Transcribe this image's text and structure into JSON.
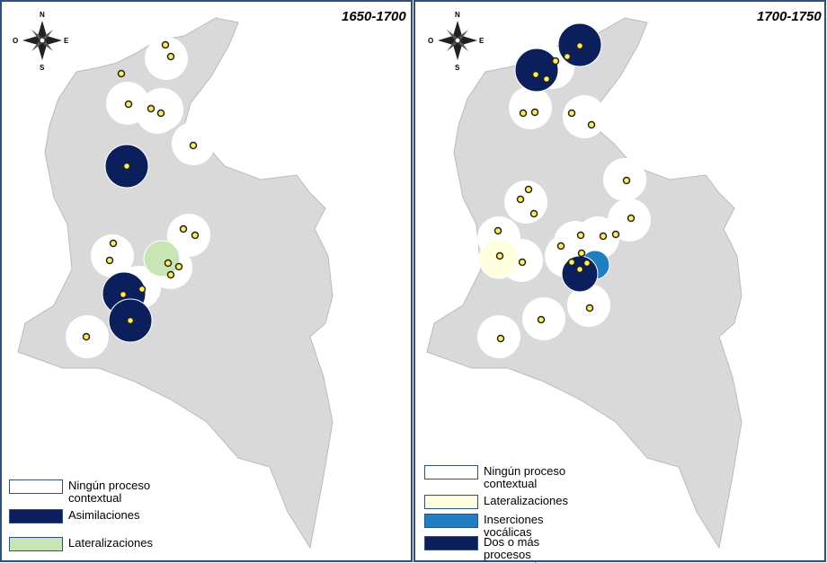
{
  "panels": [
    {
      "title": "1650-1700",
      "compass": {
        "north": "N",
        "south": "S",
        "east": "E",
        "west": "O"
      },
      "legend": [
        {
          "label": "Ningún proceso contextual",
          "color": "#ffffff"
        },
        {
          "label": "Asimilaciones",
          "color": "#0b1f5c"
        },
        {
          "label": "Lateralizaciones",
          "color": "#c8e6b4"
        }
      ]
    },
    {
      "title": "1700-1750",
      "compass": {
        "north": "N",
        "south": "S",
        "east": "E",
        "west": "O"
      },
      "legend": [
        {
          "label": "Ningún proceso contextual",
          "color": "#ffffff"
        },
        {
          "label": "Lateralizaciones",
          "color": "#ffffe0"
        },
        {
          "label": "Inserciones vocálicas",
          "color": "#1f7fc0"
        },
        {
          "label": "Dos o más procesos contextuales",
          "color": "#0b1f5c"
        }
      ]
    }
  ]
}
